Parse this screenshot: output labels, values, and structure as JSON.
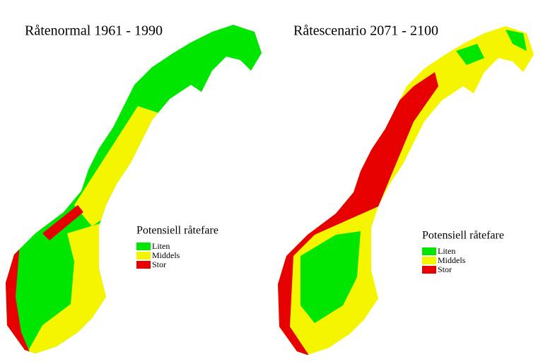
{
  "maps": [
    {
      "title": "Råtenormal 1961 - 1990",
      "legend": {
        "title": "Potensiell råtefare",
        "items": [
          {
            "label": "Liten",
            "color": "#00e600"
          },
          {
            "label": "Middels",
            "color": "#f5f500"
          },
          {
            "label": "Stor",
            "color": "#e60000"
          }
        ]
      }
    },
    {
      "title": "Råtescenario 2071 - 2100",
      "legend": {
        "title": "Potensiell råtefare",
        "items": [
          {
            "label": "Liten",
            "color": "#00e600"
          },
          {
            "label": "Middels",
            "color": "#f5f500"
          },
          {
            "label": "Stor",
            "color": "#e60000"
          }
        ]
      }
    }
  ]
}
